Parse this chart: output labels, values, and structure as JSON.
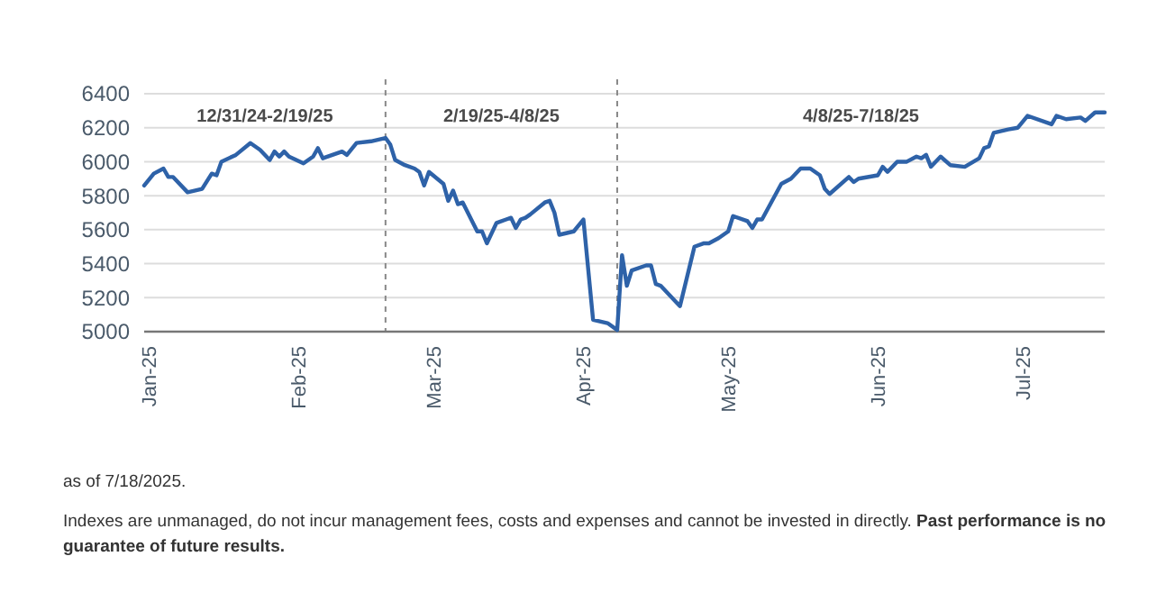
{
  "chart_data": {
    "type": "line",
    "x": [
      "2024-12-31",
      "2025-01-02",
      "2025-01-04",
      "2025-01-05",
      "2025-01-06",
      "2025-01-09",
      "2025-01-12",
      "2025-01-14",
      "2025-01-15",
      "2025-01-16",
      "2025-01-19",
      "2025-01-22",
      "2025-01-24",
      "2025-01-26",
      "2025-01-27",
      "2025-01-28",
      "2025-01-29",
      "2025-01-30",
      "2025-02-02",
      "2025-02-04",
      "2025-02-05",
      "2025-02-06",
      "2025-02-10",
      "2025-02-11",
      "2025-02-13",
      "2025-02-16",
      "2025-02-19",
      "2025-02-20",
      "2025-02-21",
      "2025-02-23",
      "2025-02-25",
      "2025-02-26",
      "2025-02-27",
      "2025-02-28",
      "2025-03-03",
      "2025-03-04",
      "2025-03-05",
      "2025-03-06",
      "2025-03-07",
      "2025-03-10",
      "2025-03-11",
      "2025-03-12",
      "2025-03-14",
      "2025-03-16",
      "2025-03-17",
      "2025-03-18",
      "2025-03-19",
      "2025-03-20",
      "2025-03-21",
      "2025-03-24",
      "2025-03-25",
      "2025-03-26",
      "2025-03-27",
      "2025-03-30",
      "2025-04-01",
      "2025-04-03",
      "2025-04-06",
      "2025-04-08",
      "2025-04-09",
      "2025-04-10",
      "2025-04-11",
      "2025-04-14",
      "2025-04-15",
      "2025-04-16",
      "2025-04-17",
      "2025-04-21",
      "2025-04-24",
      "2025-04-26",
      "2025-04-27",
      "2025-04-29",
      "2025-05-01",
      "2025-05-02",
      "2025-05-05",
      "2025-05-06",
      "2025-05-07",
      "2025-05-08",
      "2025-05-12",
      "2025-05-14",
      "2025-05-16",
      "2025-05-18",
      "2025-05-20",
      "2025-05-21",
      "2025-05-22",
      "2025-05-26",
      "2025-05-27",
      "2025-05-28",
      "2025-06-01",
      "2025-06-02",
      "2025-06-03",
      "2025-06-05",
      "2025-06-07",
      "2025-06-09",
      "2025-06-10",
      "2025-06-11",
      "2025-06-12",
      "2025-06-14",
      "2025-06-16",
      "2025-06-19",
      "2025-06-22",
      "2025-06-23",
      "2025-06-24",
      "2025-06-25",
      "2025-06-28",
      "2025-06-30",
      "2025-07-02",
      "2025-07-07",
      "2025-07-08",
      "2025-07-10",
      "2025-07-13",
      "2025-07-14",
      "2025-07-16",
      "2025-07-18"
    ],
    "series": [
      {
        "color": "#2e62a8",
        "values": [
          5860,
          5930,
          5960,
          5910,
          5910,
          5820,
          5840,
          5930,
          5920,
          6000,
          6040,
          6110,
          6070,
          6010,
          6060,
          6030,
          6060,
          6030,
          5990,
          6030,
          6080,
          6020,
          6060,
          6040,
          6110,
          6120,
          6140,
          6100,
          6010,
          5980,
          5960,
          5940,
          5860,
          5940,
          5870,
          5770,
          5830,
          5750,
          5760,
          5590,
          5590,
          5520,
          5640,
          5660,
          5670,
          5610,
          5660,
          5670,
          5690,
          5760,
          5770,
          5700,
          5570,
          5590,
          5660,
          5070,
          5050,
          5010,
          5450,
          5270,
          5360,
          5390,
          5390,
          5280,
          5270,
          5150,
          5500,
          5520,
          5520,
          5550,
          5590,
          5680,
          5650,
          5610,
          5660,
          5660,
          5870,
          5900,
          5960,
          5960,
          5920,
          5840,
          5810,
          5910,
          5880,
          5900,
          5920,
          5970,
          5940,
          6000,
          6000,
          6030,
          6020,
          6040,
          5970,
          6030,
          5980,
          5970,
          6020,
          6080,
          6090,
          6170,
          6190,
          6200,
          6270,
          6220,
          6270,
          6250,
          6260,
          6240,
          6290,
          6290
        ]
      }
    ],
    "xlim": [
      "2024-12-31",
      "2025-07-18"
    ],
    "xticks": [
      {
        "value": "2025-01-01",
        "label": "Jan-25"
      },
      {
        "value": "2025-02-01",
        "label": "Feb-25"
      },
      {
        "value": "2025-03-01",
        "label": "Mar-25"
      },
      {
        "value": "2025-04-01",
        "label": "Apr-25"
      },
      {
        "value": "2025-05-01",
        "label": "May-25"
      },
      {
        "value": "2025-06-01",
        "label": "Jun-25"
      },
      {
        "value": "2025-07-01",
        "label": "Jul-25"
      }
    ],
    "ylim": [
      5000,
      6400
    ],
    "yticks": [
      5000,
      5200,
      5400,
      5600,
      5800,
      6000,
      6200,
      6400
    ],
    "grid": "y",
    "line_style": "solid",
    "ref_lines": [
      {
        "axis": "x",
        "value": "2025-02-19",
        "line_style": "dashed",
        "color": "#888888"
      },
      {
        "axis": "x",
        "value": "2025-04-08",
        "line_style": "dashed",
        "color": "#888888"
      }
    ],
    "annotations": [
      "12/31/24-2/19/25",
      "2/19/25-4/8/25",
      "4/8/25-7/18/25",
      "as of 7/18/2025.",
      "Indexes are unmanaged, do not incur management fees, costs and expenses and cannot be invested in directly.",
      "Past performance is no guarantee of future results."
    ]
  }
}
